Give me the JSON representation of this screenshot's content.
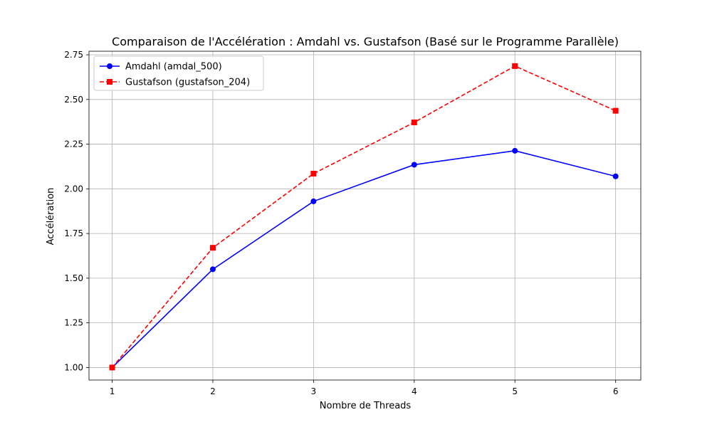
{
  "chart_data": {
    "type": "line",
    "title": "Comparaison de l'Accélération : Amdahl vs. Gustafson (Basé sur le Programme Parallèle)",
    "xlabel": "Nombre de Threads",
    "ylabel": "Accélération",
    "x": [
      1,
      2,
      3,
      4,
      5,
      6
    ],
    "x_ticks": [
      "1",
      "2",
      "3",
      "4",
      "5",
      "6"
    ],
    "y_ticks": [
      "1.00",
      "1.25",
      "1.50",
      "1.75",
      "2.00",
      "2.25",
      "2.50",
      "2.75"
    ],
    "xlim": [
      0.77,
      6.25
    ],
    "ylim": [
      0.93,
      2.77
    ],
    "grid": true,
    "legend_position": "top-left",
    "series": [
      {
        "name": "Amdahl (amdal_500)",
        "color": "#0000ff",
        "line_style": "solid",
        "marker": "circle",
        "values": [
          1.0,
          1.55,
          1.93,
          2.135,
          2.213,
          2.07
        ]
      },
      {
        "name": "Gustafson (gustafson_204)",
        "color": "#ff0000",
        "line_style": "dashed",
        "marker": "square",
        "values": [
          1.0,
          1.67,
          2.085,
          2.372,
          2.687,
          2.437
        ]
      }
    ]
  }
}
